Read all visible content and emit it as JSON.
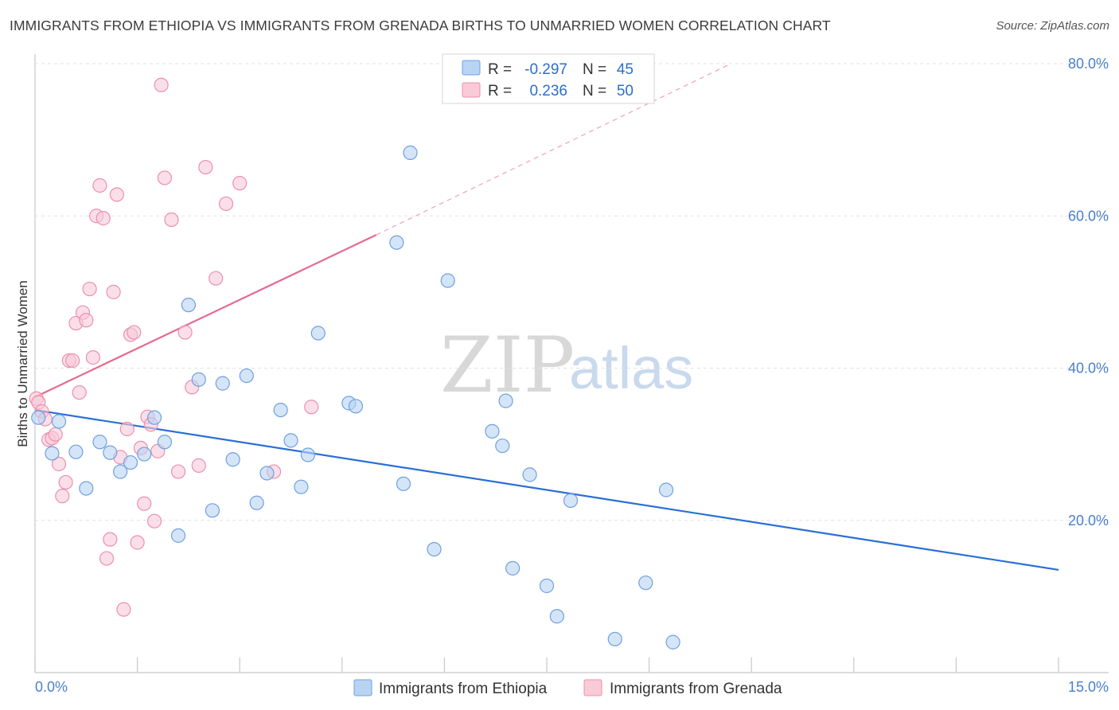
{
  "title": "IMMIGRANTS FROM ETHIOPIA VS IMMIGRANTS FROM GRENADA BIRTHS TO UNMARRIED WOMEN CORRELATION CHART",
  "source": "Source: ZipAtlas.com",
  "watermark": {
    "zip": "ZIP",
    "atlas": "atlas"
  },
  "legend_top": [
    {
      "r_label": "R =",
      "r_value": "-0.297",
      "n_label": "N =",
      "n_value": "45",
      "color": "#a9c8ee"
    },
    {
      "r_label": "R =",
      "r_value": "0.236",
      "n_label": "N =",
      "n_value": "50",
      "color": "#f5b8cb"
    }
  ],
  "legend_bottom": [
    {
      "label": "Immigrants from Ethiopia",
      "color": "#a9c8ee"
    },
    {
      "label": "Immigrants from Grenada",
      "color": "#f5b8cb"
    }
  ],
  "chart_data": {
    "type": "scatter",
    "title": "IMMIGRANTS FROM ETHIOPIA VS IMMIGRANTS FROM GRENADA BIRTHS TO UNMARRIED WOMEN CORRELATION CHART",
    "xlabel": "",
    "ylabel": "Births to Unmarried Women",
    "xlim": [
      0,
      15
    ],
    "ylim": [
      0,
      80
    ],
    "x_tick_labels": [
      "0.0%",
      "15.0%"
    ],
    "y_ticks": [
      20,
      40,
      60,
      80
    ],
    "y_tick_labels": [
      "20.0%",
      "40.0%",
      "60.0%",
      "80.0%"
    ],
    "grid": true,
    "legend_placement": "top-center",
    "series": [
      {
        "name": "Immigrants from Ethiopia",
        "color": "#6fa0e0",
        "fill": "#b9d3f3",
        "trend": {
          "x": [
            0,
            15
          ],
          "y": [
            34.5,
            13.5
          ],
          "color": "#2a6fd6"
        },
        "points": [
          [
            0.05,
            33.5
          ],
          [
            0.25,
            28.8
          ],
          [
            0.35,
            33.0
          ],
          [
            0.6,
            29.0
          ],
          [
            0.75,
            24.2
          ],
          [
            0.95,
            30.3
          ],
          [
            1.1,
            28.9
          ],
          [
            1.25,
            26.4
          ],
          [
            1.4,
            27.6
          ],
          [
            1.6,
            28.7
          ],
          [
            1.75,
            33.5
          ],
          [
            1.9,
            30.3
          ],
          [
            2.1,
            18.0
          ],
          [
            2.25,
            48.3
          ],
          [
            2.4,
            38.5
          ],
          [
            2.6,
            21.3
          ],
          [
            2.75,
            38.0
          ],
          [
            2.9,
            28.0
          ],
          [
            3.1,
            39.0
          ],
          [
            3.25,
            22.3
          ],
          [
            3.4,
            26.2
          ],
          [
            3.6,
            34.5
          ],
          [
            3.75,
            30.5
          ],
          [
            3.9,
            24.4
          ],
          [
            4.0,
            28.6
          ],
          [
            4.15,
            44.6
          ],
          [
            4.6,
            35.4
          ],
          [
            4.7,
            35.0
          ],
          [
            5.3,
            56.5
          ],
          [
            5.4,
            24.8
          ],
          [
            5.5,
            68.3
          ],
          [
            5.85,
            16.2
          ],
          [
            6.05,
            51.5
          ],
          [
            6.7,
            31.7
          ],
          [
            6.85,
            29.8
          ],
          [
            6.9,
            35.7
          ],
          [
            7.0,
            13.7
          ],
          [
            7.25,
            26.0
          ],
          [
            7.5,
            11.4
          ],
          [
            7.65,
            7.4
          ],
          [
            7.85,
            22.6
          ],
          [
            8.5,
            4.4
          ],
          [
            8.95,
            11.8
          ],
          [
            9.25,
            24.0
          ],
          [
            9.35,
            4.0
          ]
        ]
      },
      {
        "name": "Immigrants from Grenada",
        "color": "#ec90ac",
        "fill": "#f9cad8",
        "trend": {
          "x": [
            0,
            5.0
          ],
          "y": [
            36.2,
            57.5
          ],
          "color": "#e56a90"
        },
        "trend_dashed": {
          "x": [
            5.0,
            10.2
          ],
          "y": [
            57.5,
            80.0
          ]
        },
        "points": [
          [
            0.02,
            36.0
          ],
          [
            0.05,
            35.5
          ],
          [
            0.1,
            34.3
          ],
          [
            0.15,
            33.3
          ],
          [
            0.2,
            30.6
          ],
          [
            0.25,
            30.8
          ],
          [
            0.3,
            31.3
          ],
          [
            0.35,
            27.4
          ],
          [
            0.4,
            23.2
          ],
          [
            0.45,
            25.0
          ],
          [
            0.5,
            41.0
          ],
          [
            0.55,
            41.0
          ],
          [
            0.6,
            45.9
          ],
          [
            0.65,
            36.8
          ],
          [
            0.7,
            47.3
          ],
          [
            0.75,
            46.3
          ],
          [
            0.8,
            50.4
          ],
          [
            0.85,
            41.4
          ],
          [
            0.9,
            60.0
          ],
          [
            0.95,
            64.0
          ],
          [
            1.0,
            59.7
          ],
          [
            1.05,
            15.0
          ],
          [
            1.1,
            17.5
          ],
          [
            1.15,
            50.0
          ],
          [
            1.2,
            62.8
          ],
          [
            1.25,
            28.3
          ],
          [
            1.3,
            8.3
          ],
          [
            1.35,
            32.0
          ],
          [
            1.4,
            44.4
          ],
          [
            1.45,
            44.7
          ],
          [
            1.5,
            17.1
          ],
          [
            1.55,
            29.5
          ],
          [
            1.6,
            22.2
          ],
          [
            1.65,
            33.6
          ],
          [
            1.7,
            32.6
          ],
          [
            1.75,
            19.9
          ],
          [
            1.8,
            29.1
          ],
          [
            1.85,
            77.2
          ],
          [
            1.9,
            65.0
          ],
          [
            2.0,
            59.5
          ],
          [
            2.1,
            26.4
          ],
          [
            2.2,
            44.7
          ],
          [
            2.3,
            37.5
          ],
          [
            2.4,
            27.2
          ],
          [
            2.5,
            66.4
          ],
          [
            2.65,
            51.8
          ],
          [
            2.8,
            61.6
          ],
          [
            3.0,
            64.3
          ],
          [
            3.5,
            26.4
          ],
          [
            4.05,
            34.9
          ]
        ]
      }
    ]
  }
}
